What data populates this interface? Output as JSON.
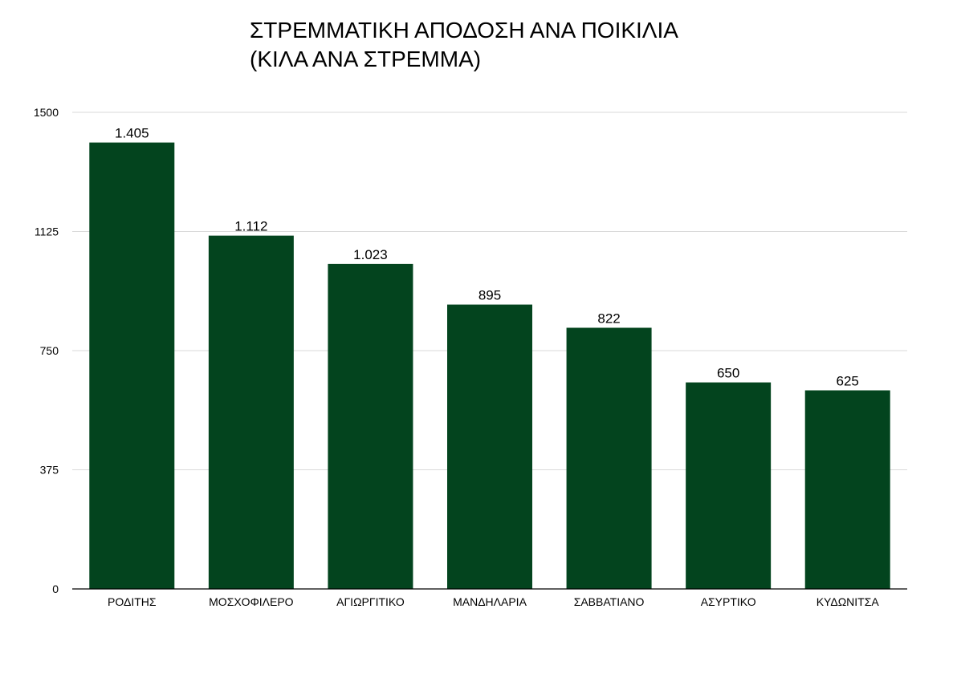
{
  "chart_data": {
    "type": "bar",
    "title_lines": [
      "ΣΤΡΕΜΜΑΤΙΚΗ ΑΠΟΔΟΣΗ ΑΝΑ ΠΟΙΚΙΛΙΑ",
      "(ΚΙΛΑ ΑΝΑ ΣΤΡΕΜΜΑ)"
    ],
    "categories": [
      "ΡΟΔΙΤΗΣ",
      "ΜΟΣΧΟΦΙΛΕΡΟ",
      "ΑΓΙΩΡΓΙΤΙΚΟ",
      "ΜΑΝΔΗΛΑΡΙΑ",
      "ΣΑΒΒΑΤΙΑΝΟ",
      "ΑΣΥΡΤΙΚΟ",
      "ΚΥΔΩΝΙΤΣΑ"
    ],
    "values": [
      1405,
      1112,
      1023,
      895,
      822,
      650,
      625
    ],
    "data_labels": [
      "1.405",
      "1.112",
      "1.023",
      "895",
      "822",
      "650",
      "625"
    ],
    "ylim": [
      0,
      1500
    ],
    "yticks": [
      "0",
      "375",
      "750",
      "1125",
      "1500"
    ],
    "ytick_values": [
      0,
      375,
      750,
      1125,
      1500
    ],
    "grid": true,
    "bar_color": "#03441e",
    "grid_color": "#d9d9d9",
    "axis_color": "#000000"
  }
}
